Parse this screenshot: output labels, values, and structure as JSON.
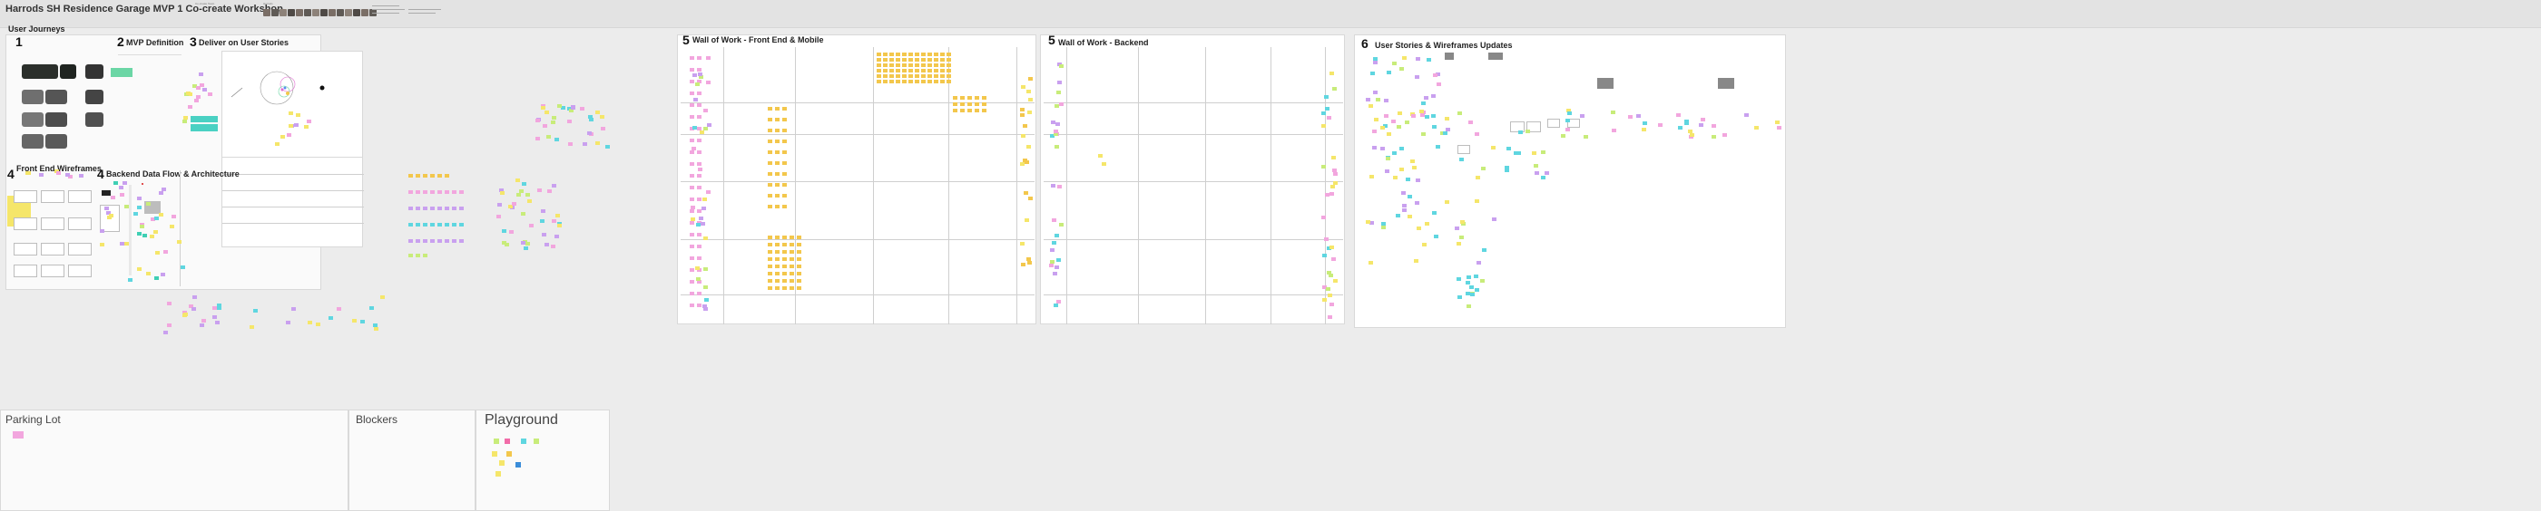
{
  "board": {
    "title": "Harrods SH Residence Garage MVP 1 Co-create Workshop",
    "header_small_1": "Co-create Team",
    "header_small_2": "Harrods"
  },
  "sections": {
    "user_journeys": {
      "label": "User Journeys",
      "number": "1"
    },
    "mvp_definition": {
      "number": "2",
      "label": "MVP Definition"
    },
    "deliver_user_stories": {
      "number": "3",
      "label": "Deliver on User Stories"
    },
    "front_end_wireframes": {
      "number": "4",
      "label": "Front End Wireframes"
    },
    "backend_data_flow": {
      "number": "4",
      "label": "Backend Data Flow & Architecture"
    },
    "wall_front_end": {
      "number": "5",
      "label": "Wall of Work - Front End & Mobile"
    },
    "wall_backend": {
      "number": "5",
      "label": "Wall of Work - Backend"
    },
    "user_stories_wireframes": {
      "number": "6",
      "label": "User Stories & Wireframes Updates"
    }
  },
  "zones": {
    "parking_lot": "Parking Lot",
    "blockers": "Blockers",
    "playground": "Playground"
  },
  "colors": {
    "sticky_yellow": "#f5e66a",
    "sticky_orange": "#f3c74c",
    "sticky_pink": "#f2a6de",
    "sticky_purple": "#c9a0ef",
    "sticky_cyan": "#5fd6e0",
    "sticky_green": "#c8ec7a",
    "sticky_teal": "#3fcfb4"
  }
}
